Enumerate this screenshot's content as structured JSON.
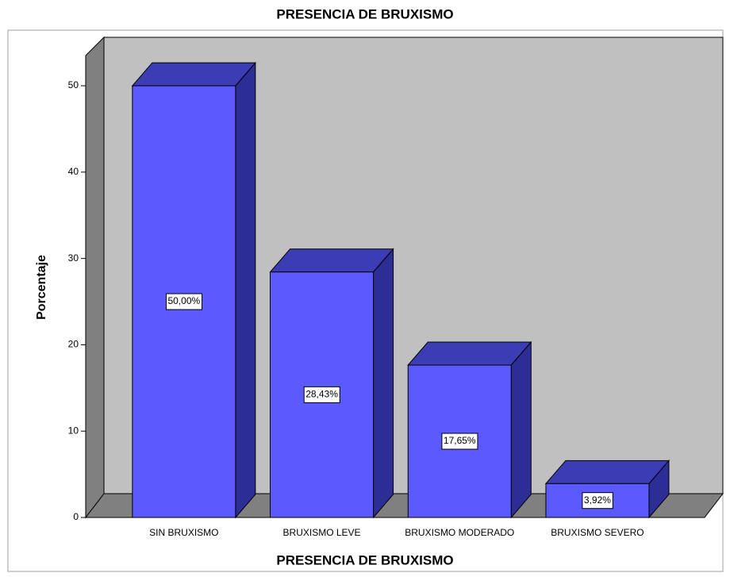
{
  "chart_data": {
    "type": "bar3d",
    "title": "PRESENCIA DE BRUXISMO",
    "x_label": "PRESENCIA DE BRUXISMO",
    "y_label": "Porcentaje",
    "categories": [
      "SIN BRUXISMO",
      "BRUXISMO LEVE",
      "BRUXISMO MODERADO",
      "BRUXISMO SEVERO"
    ],
    "values": [
      50,
      28.43,
      17.65,
      3.92
    ],
    "value_labels": [
      "50,00%",
      "28,43%",
      "17,65%",
      "3,92%"
    ],
    "color": "#5a5aff",
    "ylim": [
      0,
      53.5
    ],
    "yticks": [
      0,
      10,
      20,
      30,
      40,
      50
    ],
    "grid": false
  }
}
